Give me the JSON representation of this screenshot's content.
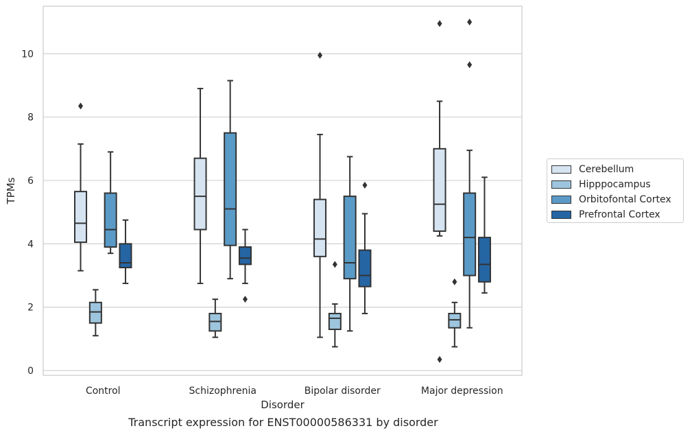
{
  "chart_data": {
    "type": "box",
    "xlabel": "Disorder",
    "ylabel": "TPMs",
    "ylim": [
      -0.15,
      11.5
    ],
    "yticks": [
      0,
      2,
      4,
      6,
      8,
      10
    ],
    "grid": "horizontal",
    "legend_position": "right",
    "categories": [
      "Control",
      "Schizophrenia",
      "Bipolar disorder",
      "Major depression"
    ],
    "series": [
      {
        "name": "Cerebellum",
        "color": "#d6e4f2",
        "boxes": [
          {
            "whisker_low": 3.15,
            "q1": 4.05,
            "median": 4.65,
            "q3": 5.65,
            "whisker_high": 7.15,
            "outliers": [
              8.35
            ]
          },
          {
            "whisker_low": 2.75,
            "q1": 4.45,
            "median": 5.5,
            "q3": 6.7,
            "whisker_high": 8.9,
            "outliers": []
          },
          {
            "whisker_low": 1.05,
            "q1": 3.6,
            "median": 4.15,
            "q3": 5.4,
            "whisker_high": 7.45,
            "outliers": [
              9.95
            ]
          },
          {
            "whisker_low": 4.25,
            "q1": 4.4,
            "median": 5.25,
            "q3": 7.0,
            "whisker_high": 8.5,
            "outliers": [
              10.95,
              0.35
            ]
          }
        ]
      },
      {
        "name": "Hipppocampus",
        "color": "#9dc5de",
        "boxes": [
          {
            "whisker_low": 1.1,
            "q1": 1.5,
            "median": 1.85,
            "q3": 2.15,
            "whisker_high": 2.55,
            "outliers": []
          },
          {
            "whisker_low": 1.05,
            "q1": 1.25,
            "median": 1.55,
            "q3": 1.8,
            "whisker_high": 2.25,
            "outliers": []
          },
          {
            "whisker_low": 0.75,
            "q1": 1.3,
            "median": 1.65,
            "q3": 1.8,
            "whisker_high": 2.1,
            "outliers": [
              3.35
            ]
          },
          {
            "whisker_low": 0.75,
            "q1": 1.35,
            "median": 1.6,
            "q3": 1.8,
            "whisker_high": 2.15,
            "outliers": [
              2.8
            ]
          }
        ]
      },
      {
        "name": "Orbitofontal Cortex",
        "color": "#5a9ac7",
        "boxes": [
          {
            "whisker_low": 3.7,
            "q1": 3.9,
            "median": 4.45,
            "q3": 5.6,
            "whisker_high": 6.9,
            "outliers": []
          },
          {
            "whisker_low": 2.9,
            "q1": 3.95,
            "median": 5.1,
            "q3": 7.5,
            "whisker_high": 9.15,
            "outliers": []
          },
          {
            "whisker_low": 1.25,
            "q1": 2.9,
            "median": 3.4,
            "q3": 5.5,
            "whisker_high": 6.75,
            "outliers": []
          },
          {
            "whisker_low": 1.35,
            "q1": 3.0,
            "median": 4.2,
            "q3": 5.6,
            "whisker_high": 6.95,
            "outliers": [
              9.65,
              11.0
            ]
          }
        ]
      },
      {
        "name": "Prefrontal Cortex",
        "color": "#2565a4",
        "boxes": [
          {
            "whisker_low": 2.75,
            "q1": 3.25,
            "median": 3.4,
            "q3": 4.0,
            "whisker_high": 4.75,
            "outliers": []
          },
          {
            "whisker_low": 2.75,
            "q1": 3.35,
            "median": 3.55,
            "q3": 3.9,
            "whisker_high": 4.45,
            "outliers": [
              2.25
            ]
          },
          {
            "whisker_low": 1.8,
            "q1": 2.65,
            "median": 3.0,
            "q3": 3.8,
            "whisker_high": 4.95,
            "outliers": [
              5.85
            ]
          },
          {
            "whisker_low": 2.45,
            "q1": 2.8,
            "median": 3.35,
            "q3": 4.2,
            "whisker_high": 6.1,
            "outliers": []
          }
        ]
      }
    ]
  },
  "caption": "Transcript expression for ENST00000586331 by disorder"
}
